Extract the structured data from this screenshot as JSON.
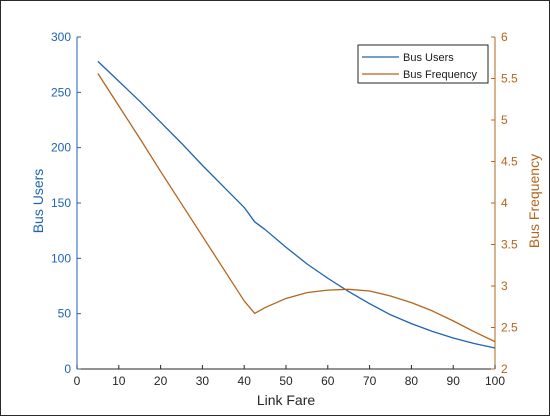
{
  "chart_data": {
    "type": "line",
    "title": "",
    "xlabel": "Link Fare",
    "ylabel_left": "Bus Users",
    "ylabel_right": "Bus Frequency",
    "xlim": [
      0,
      100
    ],
    "ylim_left": [
      0,
      300
    ],
    "ylim_right": [
      2,
      6
    ],
    "xticks": [
      "0",
      "10",
      "20",
      "30",
      "40",
      "50",
      "60",
      "70",
      "80",
      "90",
      "100"
    ],
    "yticks_left": [
      "0",
      "50",
      "100",
      "150",
      "200",
      "250",
      "300"
    ],
    "yticks_right": [
      "2",
      "2.5",
      "3",
      "3.5",
      "4",
      "4.5",
      "5",
      "5.5",
      "6"
    ],
    "grid": false,
    "legend_position": "top-right",
    "colors": {
      "left": "#1f63b3",
      "right": "#b5651d",
      "axis": "#262626"
    },
    "series": [
      {
        "name": "Bus Users",
        "axis": "left",
        "x": [
          5,
          10,
          15,
          20,
          25,
          30,
          35,
          40,
          42.5,
          45,
          50,
          55,
          60,
          65,
          70,
          75,
          80,
          85,
          90,
          95,
          100
        ],
        "y": [
          278,
          260,
          242,
          223,
          204,
          184,
          165,
          146,
          133,
          126,
          110,
          95,
          82,
          70,
          59,
          49,
          41,
          34,
          28,
          23,
          19
        ]
      },
      {
        "name": "Bus Frequency",
        "axis": "right",
        "x": [
          5,
          10,
          15,
          20,
          25,
          30,
          35,
          40,
          42.5,
          45,
          50,
          55,
          60,
          65,
          70,
          75,
          80,
          85,
          90,
          95,
          100
        ],
        "y": [
          5.56,
          5.17,
          4.78,
          4.38,
          3.99,
          3.6,
          3.21,
          2.82,
          2.67,
          2.74,
          2.85,
          2.92,
          2.95,
          2.96,
          2.94,
          2.88,
          2.8,
          2.7,
          2.58,
          2.45,
          2.33
        ]
      }
    ]
  }
}
